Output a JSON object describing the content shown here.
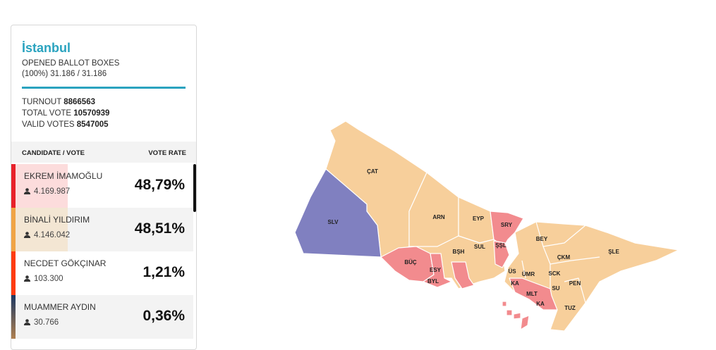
{
  "panel": {
    "title": "İstanbul",
    "opened_label": "OPENED BALLOT BOXES",
    "opened_value": "(100%) 31.186 / 31.186",
    "turnout_label": "TURNOUT",
    "turnout": "8866563",
    "total_label": "TOTAL VOTE",
    "total": "10570939",
    "valid_label": "VALID VOTES",
    "valid": "8547005",
    "col_candidate": "CANDIDATE / VOTE",
    "col_rate": "VOTE RATE"
  },
  "candidates": [
    {
      "name": "EKREM İMAMOĞLU",
      "votes": "4.169.987",
      "rate": "48,79%",
      "color": "#e8212a"
    },
    {
      "name": "BİNALİ YILDIRIM",
      "votes": "4.146.042",
      "rate": "48,51%",
      "color": "#f0a445"
    },
    {
      "name": "NECDET GÖKÇINAR",
      "votes": "103.300",
      "rate": "1,21%",
      "color": "#ff3c10"
    },
    {
      "name": "MUAMMER AYDIN",
      "votes": "30.766",
      "rate": "0,36%",
      "color": "#1b3762"
    }
  ],
  "map": {
    "colors": {
      "imamoglu": "#f28b8e",
      "yildirim": "#f7cf9b",
      "other": "#8080c0"
    },
    "districts": [
      "ÇAT",
      "SLV",
      "ARN",
      "EYP",
      "SRY",
      "BŞH",
      "SUL",
      "ŞŞL",
      "BÜÇ",
      "ESY",
      "BYL",
      "BEY",
      "ŞLE",
      "ÇKM",
      "ÜS",
      "ÜMR",
      "SCK",
      "KA",
      "PEN",
      "MLT",
      "SU",
      "KA",
      "TUZ"
    ]
  }
}
